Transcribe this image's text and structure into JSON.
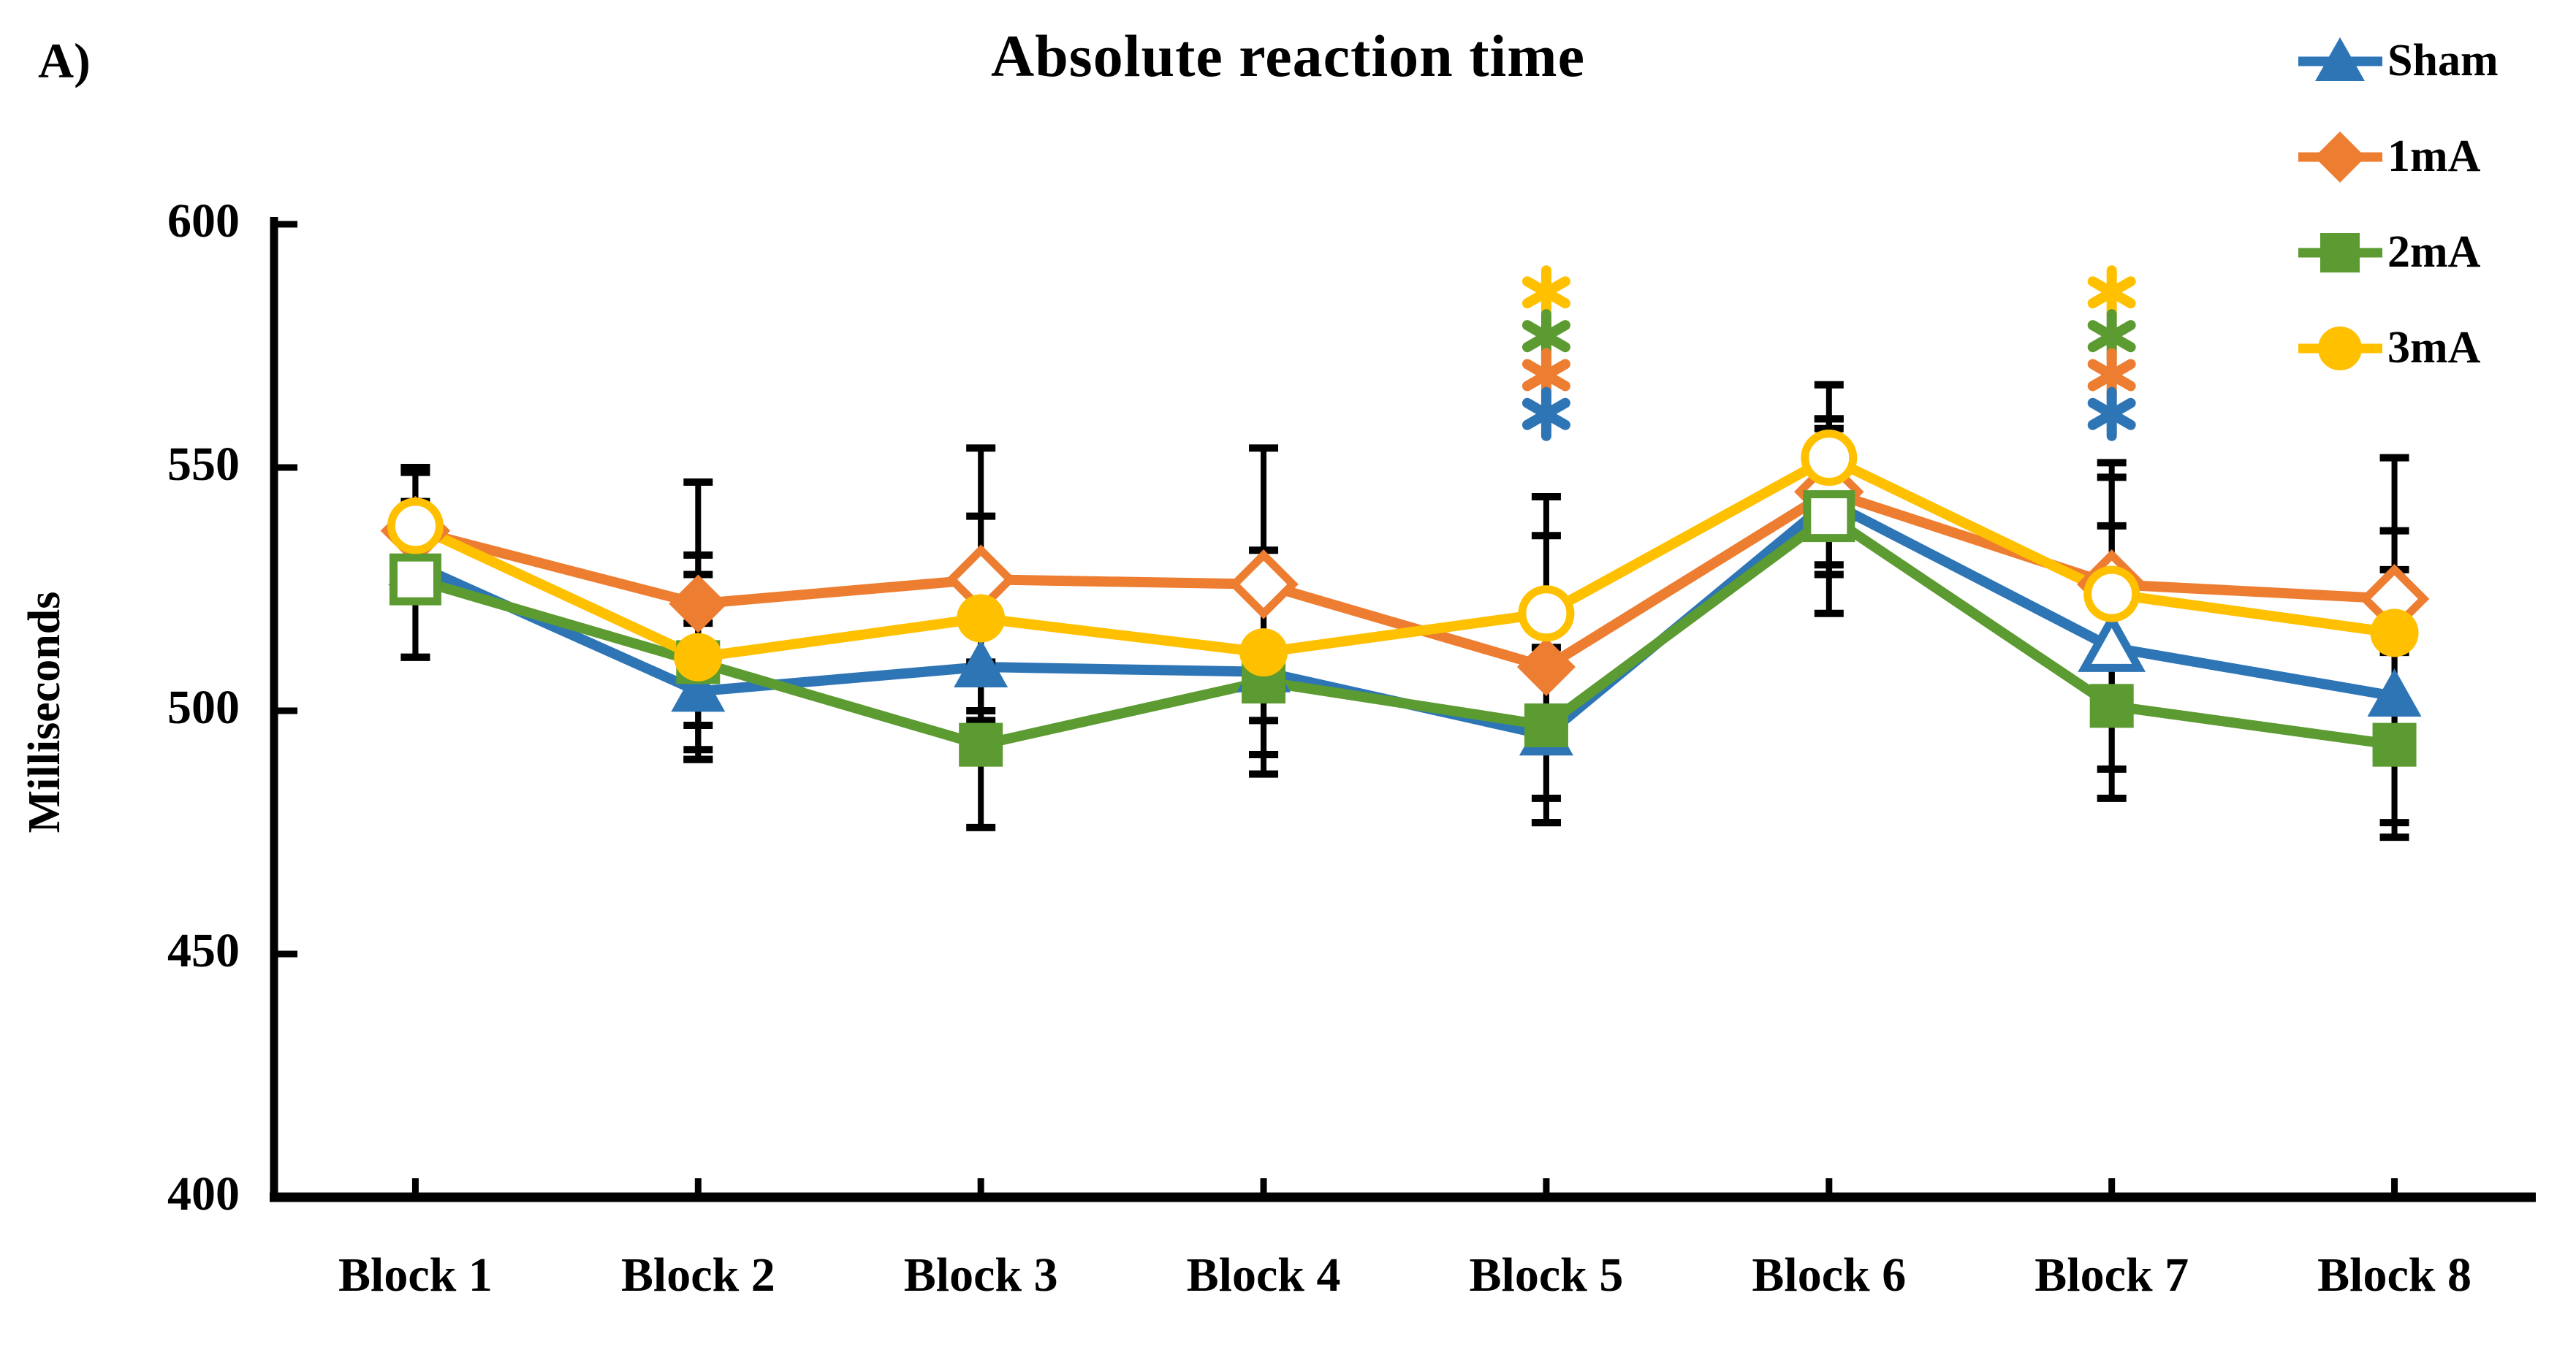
{
  "panel_label": "A)",
  "title": "Absolute reaction time",
  "y_axis_label": "Milliseconds",
  "chart_data": {
    "type": "line",
    "title": "Absolute reaction time",
    "ylabel": "Milliseconds",
    "xlabel": "",
    "ylim": [
      400,
      600
    ],
    "yticks": [
      400,
      450,
      500,
      550,
      600
    ],
    "grid": false,
    "legend_position": "top-right",
    "categories": [
      "Block 1",
      "Block 2",
      "Block 3",
      "Block 4",
      "Block 5",
      "Block 6",
      "Block 7",
      "Block 8"
    ],
    "series": [
      {
        "name": "Sham",
        "color": "#2E75B6",
        "marker": "triangle",
        "values": [
          530,
          504,
          509,
          508,
          495,
          543,
          513,
          503
        ],
        "errors": [
          19,
          14,
          17,
          17,
          18,
          15,
          25,
          26
        ],
        "open_markers": [
          false,
          false,
          false,
          false,
          false,
          false,
          true,
          false
        ]
      },
      {
        "name": "1mA",
        "color": "#ED7D31",
        "marker": "diamond",
        "values": [
          537,
          522,
          527,
          526,
          509,
          545,
          526,
          523
        ],
        "errors": [
          13,
          25,
          27,
          28,
          27,
          15,
          25,
          29
        ],
        "open_markers": [
          true,
          false,
          true,
          true,
          false,
          true,
          true,
          true
        ]
      },
      {
        "name": "2mA",
        "color": "#5B9B31",
        "marker": "square",
        "values": [
          527,
          510,
          493,
          506,
          497,
          540,
          501,
          493
        ],
        "errors": [
          16,
          18,
          17,
          19,
          20,
          20,
          19,
          19
        ],
        "open_markers": [
          true,
          false,
          false,
          false,
          false,
          true,
          false,
          false
        ]
      },
      {
        "name": "3mA",
        "color": "#FFC000",
        "marker": "circle",
        "values": [
          538,
          511,
          519,
          512,
          520,
          552,
          524,
          516
        ],
        "errors": [
          12,
          21,
          21,
          21,
          24,
          15,
          24,
          21
        ],
        "open_markers": [
          true,
          false,
          false,
          false,
          true,
          true,
          true,
          false
        ]
      }
    ],
    "annotations": [
      {
        "type": "significance-asterisks",
        "category": "Block 5",
        "colors_top_to_bottom": [
          "#FFC000",
          "#5B9B31",
          "#ED7D31",
          "#2E75B6"
        ],
        "y_values": [
          586,
          577,
          569,
          561
        ]
      },
      {
        "type": "significance-asterisks",
        "category": "Block 7",
        "colors_top_to_bottom": [
          "#FFC000",
          "#5B9B31",
          "#ED7D31",
          "#2E75B6"
        ],
        "y_values": [
          586,
          577,
          569,
          561
        ]
      }
    ]
  }
}
